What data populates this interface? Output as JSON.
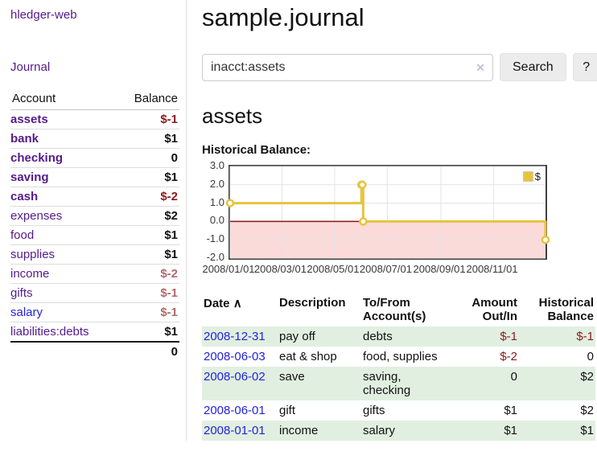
{
  "sidebar": {
    "brand": "hledger-web",
    "nav": {
      "journal": "Journal"
    },
    "accounts_table": {
      "col_account": "Account",
      "col_balance": "Balance",
      "rows": [
        {
          "name": "assets",
          "balance": "$-1"
        },
        {
          "name": "bank",
          "balance": "$1"
        },
        {
          "name": "checking",
          "balance": "0"
        },
        {
          "name": "saving",
          "balance": "$1"
        },
        {
          "name": "cash",
          "balance": "$-2"
        },
        {
          "name": "expenses",
          "balance": "$2"
        },
        {
          "name": "food",
          "balance": "$1"
        },
        {
          "name": "supplies",
          "balance": "$1"
        },
        {
          "name": "income",
          "balance": "$-2"
        },
        {
          "name": "gifts",
          "balance": "$-1"
        },
        {
          "name": "salary",
          "balance": "$-1"
        },
        {
          "name": "liabilities:debts",
          "balance": "$1"
        }
      ],
      "total": "0"
    }
  },
  "main": {
    "title": "sample.journal",
    "search": {
      "value": "inacct:assets",
      "clear_icon": "✕",
      "button": "Search",
      "help_button": "?"
    },
    "account_heading": "assets",
    "chart_label": "Historical Balance:",
    "register_table": {
      "headers": {
        "date": "Date",
        "sort_icon": "∧",
        "description": "Description",
        "accounts": "To/From Account(s)",
        "amount": "Amount Out/In",
        "balance": "Historical Balance"
      },
      "rows": [
        {
          "date": "2008-12-31",
          "description": "pay off",
          "accounts": "debts",
          "amount": "$-1",
          "balance": "$-1"
        },
        {
          "date": "2008-06-03",
          "description": "eat & shop",
          "accounts": "food, supplies",
          "amount": "$-2",
          "balance": "0"
        },
        {
          "date": "2008-06-02",
          "description": "save",
          "accounts": "saving, checking",
          "amount": "0",
          "balance": "$2"
        },
        {
          "date": "2008-06-01",
          "description": "gift",
          "accounts": "gifts",
          "amount": "$1",
          "balance": "$2"
        },
        {
          "date": "2008-01-01",
          "description": "income",
          "accounts": "salary",
          "amount": "$1",
          "balance": "$1"
        }
      ]
    }
  },
  "chart_data": {
    "type": "line",
    "step": true,
    "title": "Historical Balance",
    "series": [
      {
        "name": "$",
        "color": "#e8c33d",
        "points": [
          [
            "2008/01/01",
            1
          ],
          [
            "2008/06/01",
            2
          ],
          [
            "2008/06/02",
            2
          ],
          [
            "2008/06/03",
            0
          ],
          [
            "2008/12/31",
            -1
          ]
        ]
      }
    ],
    "xlim": [
      "2008/01/01",
      "2008/12/31"
    ],
    "ylim": [
      -2,
      3
    ],
    "yticks": [
      3.0,
      2.0,
      1.0,
      0.0,
      -1.0,
      -2.0
    ],
    "xticks": [
      "2008/01/01",
      "2008/03/01",
      "2008/05/01",
      "2008/07/01",
      "2008/09/01",
      "2008/11/01"
    ],
    "legend": {
      "label": "$",
      "position": "top-right"
    },
    "grid": true,
    "negative_region_color": "#fbdada",
    "zero_line_color": "#8b1515",
    "grid_color": "#e3e3e3"
  },
  "colors": {
    "link_purple": "#551a8b",
    "link_blue": "#2323d9",
    "negative_red": "#8b1b1b",
    "negative_muted_red": "#b36a6a",
    "row_stripe_green": "#e1efe1",
    "chart_gold": "#e8c33d"
  }
}
